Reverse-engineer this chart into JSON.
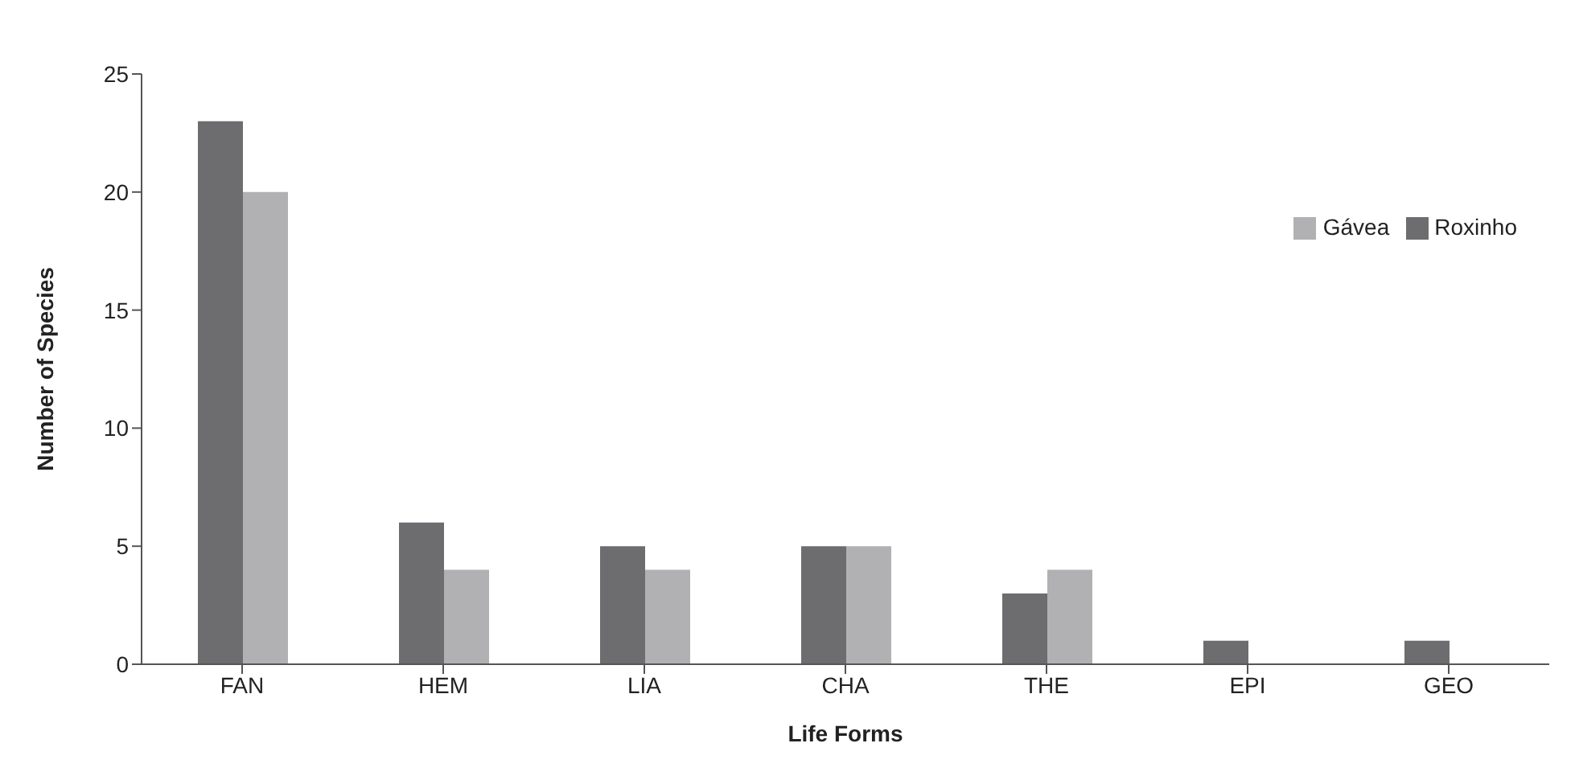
{
  "chart_data": {
    "type": "bar",
    "xlabel": "Life Forms",
    "ylabel": "Number of Species",
    "categories": [
      "FAN",
      "HEM",
      "LIA",
      "CHA",
      "THE",
      "EPI",
      "GEO"
    ],
    "series": [
      {
        "name": "Roxinho",
        "color": "#6d6d6f",
        "values": [
          23,
          6,
          5,
          5,
          3,
          1,
          1
        ]
      },
      {
        "name": "Gávea",
        "color": "#b1b1b3",
        "values": [
          20,
          4,
          4,
          5,
          4,
          0,
          0
        ]
      }
    ],
    "ylim": [
      0,
      25
    ],
    "yticks": [
      0,
      5,
      10,
      15,
      20,
      25
    ],
    "grid": false,
    "legend": "top right"
  }
}
